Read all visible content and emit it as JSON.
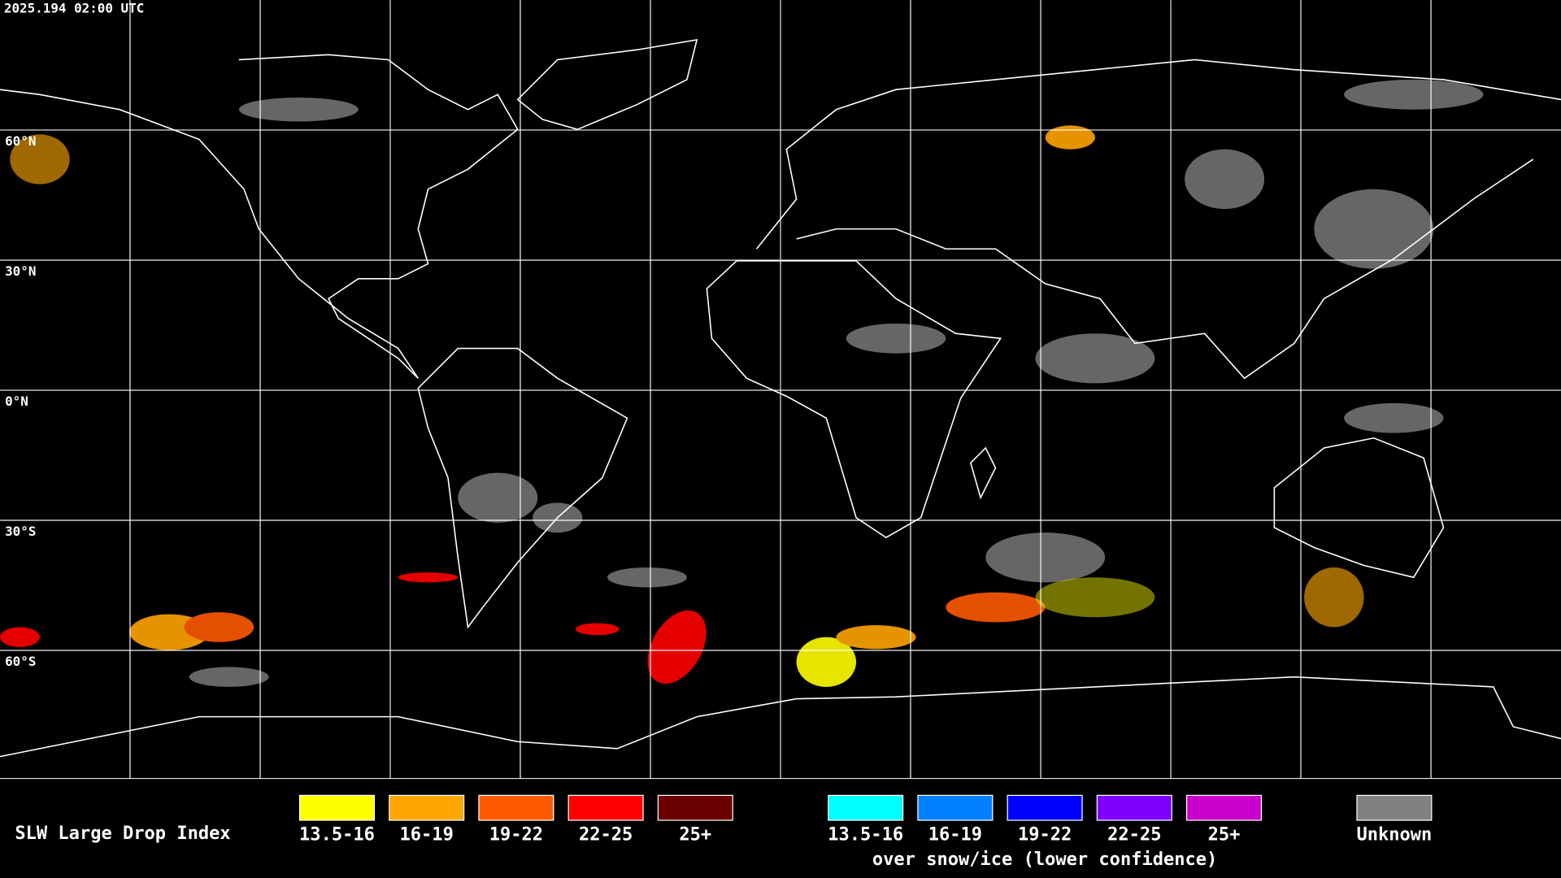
{
  "timestamp": "2025.194 02:00 UTC",
  "latitude_labels": [
    "60°N",
    "30°N",
    "0°N",
    "30°S",
    "60°S"
  ],
  "legend": {
    "title": "SLW Large Drop Index",
    "groups": [
      {
        "items": [
          {
            "label": "13.5-16",
            "color": "#ffff00"
          },
          {
            "label": "16-19",
            "color": "#ffa500"
          },
          {
            "label": "19-22",
            "color": "#ff5a00"
          },
          {
            "label": "22-25",
            "color": "#ff0000"
          },
          {
            "label": "25+",
            "color": "#6b0000"
          }
        ]
      },
      {
        "items": [
          {
            "label": "13.5-16",
            "color": "#00ffff"
          },
          {
            "label": "16-19",
            "color": "#0080ff"
          },
          {
            "label": "19-22",
            "color": "#0000ff"
          },
          {
            "label": "22-25",
            "color": "#7f00ff"
          },
          {
            "label": "25+",
            "color": "#cc00cc"
          }
        ],
        "caption": "over snow/ice (lower confidence)"
      },
      {
        "items": [
          {
            "label": "Unknown",
            "color": "#808080"
          }
        ]
      }
    ]
  }
}
